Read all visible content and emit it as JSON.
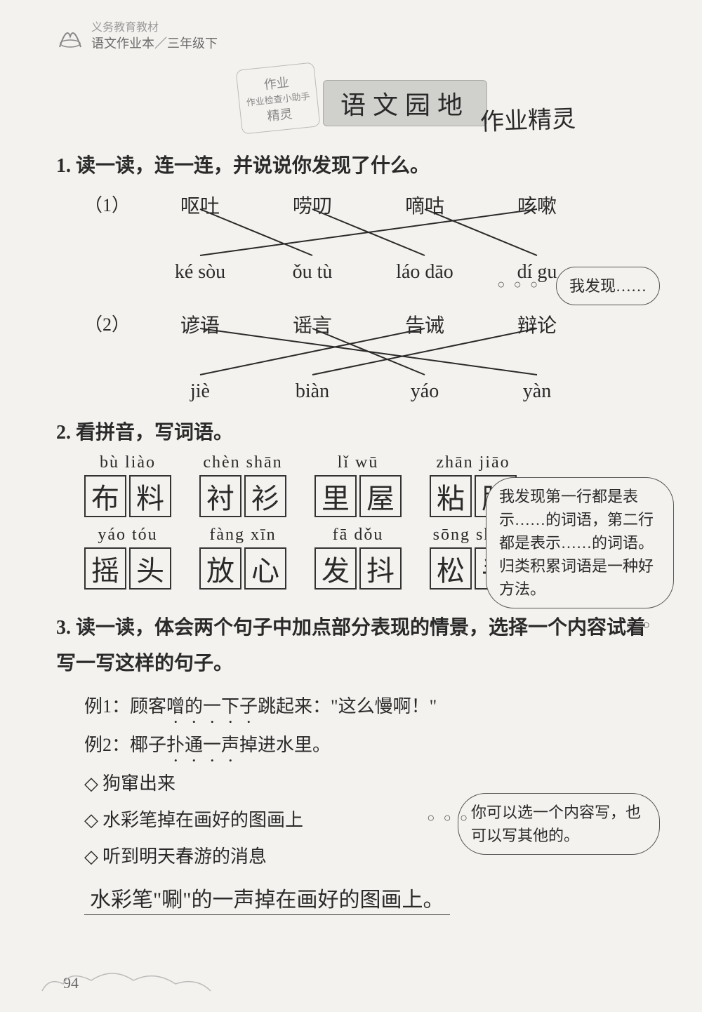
{
  "header": {
    "line1": "义务教育教材",
    "line2": "语文作业本／三年级下"
  },
  "banner": {
    "stamp_lines": [
      "作业",
      "作业检查小助手",
      "精灵"
    ],
    "title": "语文园地",
    "hand_note": "作业精灵"
  },
  "q1": {
    "title": "1. 读一读，连一连，并说说你发现了什么。",
    "group1": {
      "label": "（1）",
      "top": [
        "呕吐",
        "唠叨",
        "嘀咕",
        "咳嗽"
      ],
      "bottom": [
        "ké sòu",
        "ǒu tù",
        "láo dāo",
        "dí gu"
      ],
      "lines": [
        [
          0,
          1
        ],
        [
          1,
          2
        ],
        [
          2,
          3
        ],
        [
          3,
          0
        ]
      ],
      "line_color": "#2a2a2a"
    },
    "cloud1": {
      "text": "我发现……",
      "tail": "○ ○ ○"
    },
    "group2": {
      "label": "（2）",
      "top": [
        "谚语",
        "谣言",
        "告诫",
        "辩论"
      ],
      "bottom": [
        "jiè",
        "biàn",
        "yáo",
        "yàn"
      ],
      "lines": [
        [
          0,
          3
        ],
        [
          1,
          2
        ],
        [
          2,
          0
        ],
        [
          3,
          1
        ]
      ],
      "line_color": "#2a2a2a"
    }
  },
  "q2": {
    "title": "2. 看拼音，写词语。",
    "row1": [
      {
        "py": "bù  liào",
        "chars": [
          "布",
          "料"
        ]
      },
      {
        "py": "chèn shān",
        "chars": [
          "衬",
          "衫"
        ]
      },
      {
        "py": "lǐ  wū",
        "chars": [
          "里",
          "屋"
        ]
      },
      {
        "py": "zhān jiāo",
        "chars": [
          "粘",
          "胶"
        ]
      }
    ],
    "row2": [
      {
        "py": "yáo  tóu",
        "chars": [
          "摇",
          "头"
        ]
      },
      {
        "py": "fàng  xīn",
        "chars": [
          "放",
          "心"
        ]
      },
      {
        "py": "fā  dǒu",
        "chars": [
          "发",
          "抖"
        ]
      },
      {
        "py": "sōng shǒu",
        "chars": [
          "松",
          "手"
        ]
      }
    ],
    "cloud": {
      "text": "我发现第一行都是表示……的词语，第二行都是表示……的词语。归类积累词语是一种好方法。",
      "tail": "○ ○"
    }
  },
  "q3": {
    "title": "3. 读一读，体会两个句子中加点部分表现的情景，选择一个内容试着写一写这样的句子。",
    "ex1_pre": "例1：顾客",
    "ex1_emph": "噌的一下子",
    "ex1_post": "跳起来：\"这么慢啊！\"",
    "ex2_pre": "例2：椰子",
    "ex2_emph": "扑通一声",
    "ex2_post": "掉进水里。",
    "opts": [
      "狗窜出来",
      "水彩笔掉在画好的图画上",
      "听到明天春游的消息"
    ],
    "cloud": {
      "text": "你可以选一个内容写，也可以写其他的。",
      "tail": "○ ○ ○"
    },
    "answer": "水彩笔\"唰\"的一声掉在画好的图画上。"
  },
  "page_number": "94",
  "colors": {
    "bg": "#f4f2ee",
    "text": "#2a2a2a",
    "border": "#333333"
  }
}
